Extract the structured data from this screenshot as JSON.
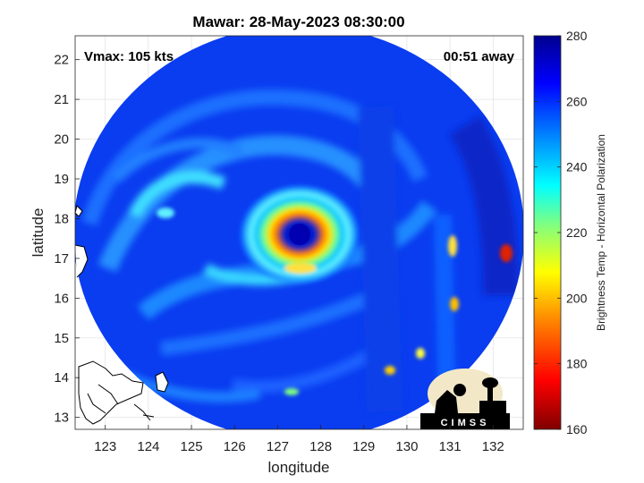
{
  "chart_data": {
    "type": "heatmap",
    "title": "Mawar: 28-May-2023 08:30:00",
    "xlabel": "longitude",
    "ylabel": "latitude",
    "xlim": [
      122.3,
      132.7
    ],
    "ylim": [
      12.7,
      22.6
    ],
    "x_ticks": [
      "123",
      "124",
      "125",
      "126",
      "127",
      "128",
      "129",
      "130",
      "131",
      "132"
    ],
    "y_ticks": [
      "13",
      "14",
      "15",
      "16",
      "17",
      "18",
      "19",
      "20",
      "21",
      "22"
    ],
    "annotations": {
      "vmax": "Vmax: 105 kts",
      "time_offset": "00:51 away"
    },
    "storm_center": {
      "lon": 127.4,
      "lat": 17.6
    },
    "eye_radius_deg": 0.45,
    "colorbar": {
      "label": "Brightness Temp - Horizontal Polarization",
      "range": [
        160,
        280
      ],
      "ticks": [
        "160",
        "180",
        "200",
        "220",
        "240",
        "260",
        "280"
      ]
    },
    "colormap": [
      "#800000",
      "#ff0000",
      "#ff8000",
      "#ffff00",
      "#80ff80",
      "#00ffff",
      "#0080ff",
      "#0000ff",
      "#00008f"
    ],
    "grid": true,
    "logo": "CIMSS"
  }
}
